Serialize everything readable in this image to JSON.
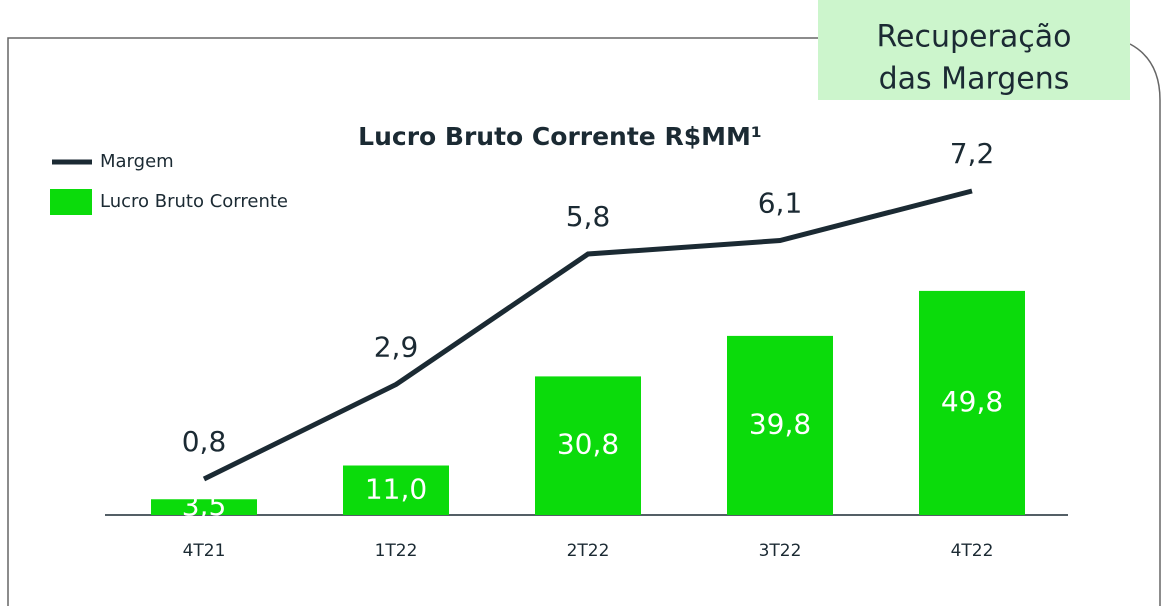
{
  "chart_data": {
    "type": "bar_line",
    "title": "Lucro Bruto Corrente R$MM¹",
    "annotation": [
      "Recuperação",
      "das Margens"
    ],
    "categories": [
      "4T21",
      "1T22",
      "2T22",
      "3T22",
      "4T22"
    ],
    "ylim": [
      0,
      100
    ],
    "y2lim": [
      0,
      10
    ],
    "series": [
      {
        "name": "Margem",
        "type": "line",
        "axis": "y2",
        "color": "#1b2a33",
        "values": [
          0.8,
          2.9,
          5.8,
          6.1,
          7.2
        ],
        "value_labels": [
          "0,8",
          "2,9",
          "5,8",
          "6,1",
          "7,2"
        ]
      },
      {
        "name": "Lucro Bruto Corrente",
        "type": "bar",
        "color": "#0bdb0b",
        "values": [
          3.5,
          11.0,
          30.8,
          39.8,
          49.8
        ],
        "value_labels": [
          "3,5",
          "11,0",
          "30,8",
          "39,8",
          "49,8"
        ]
      }
    ]
  }
}
